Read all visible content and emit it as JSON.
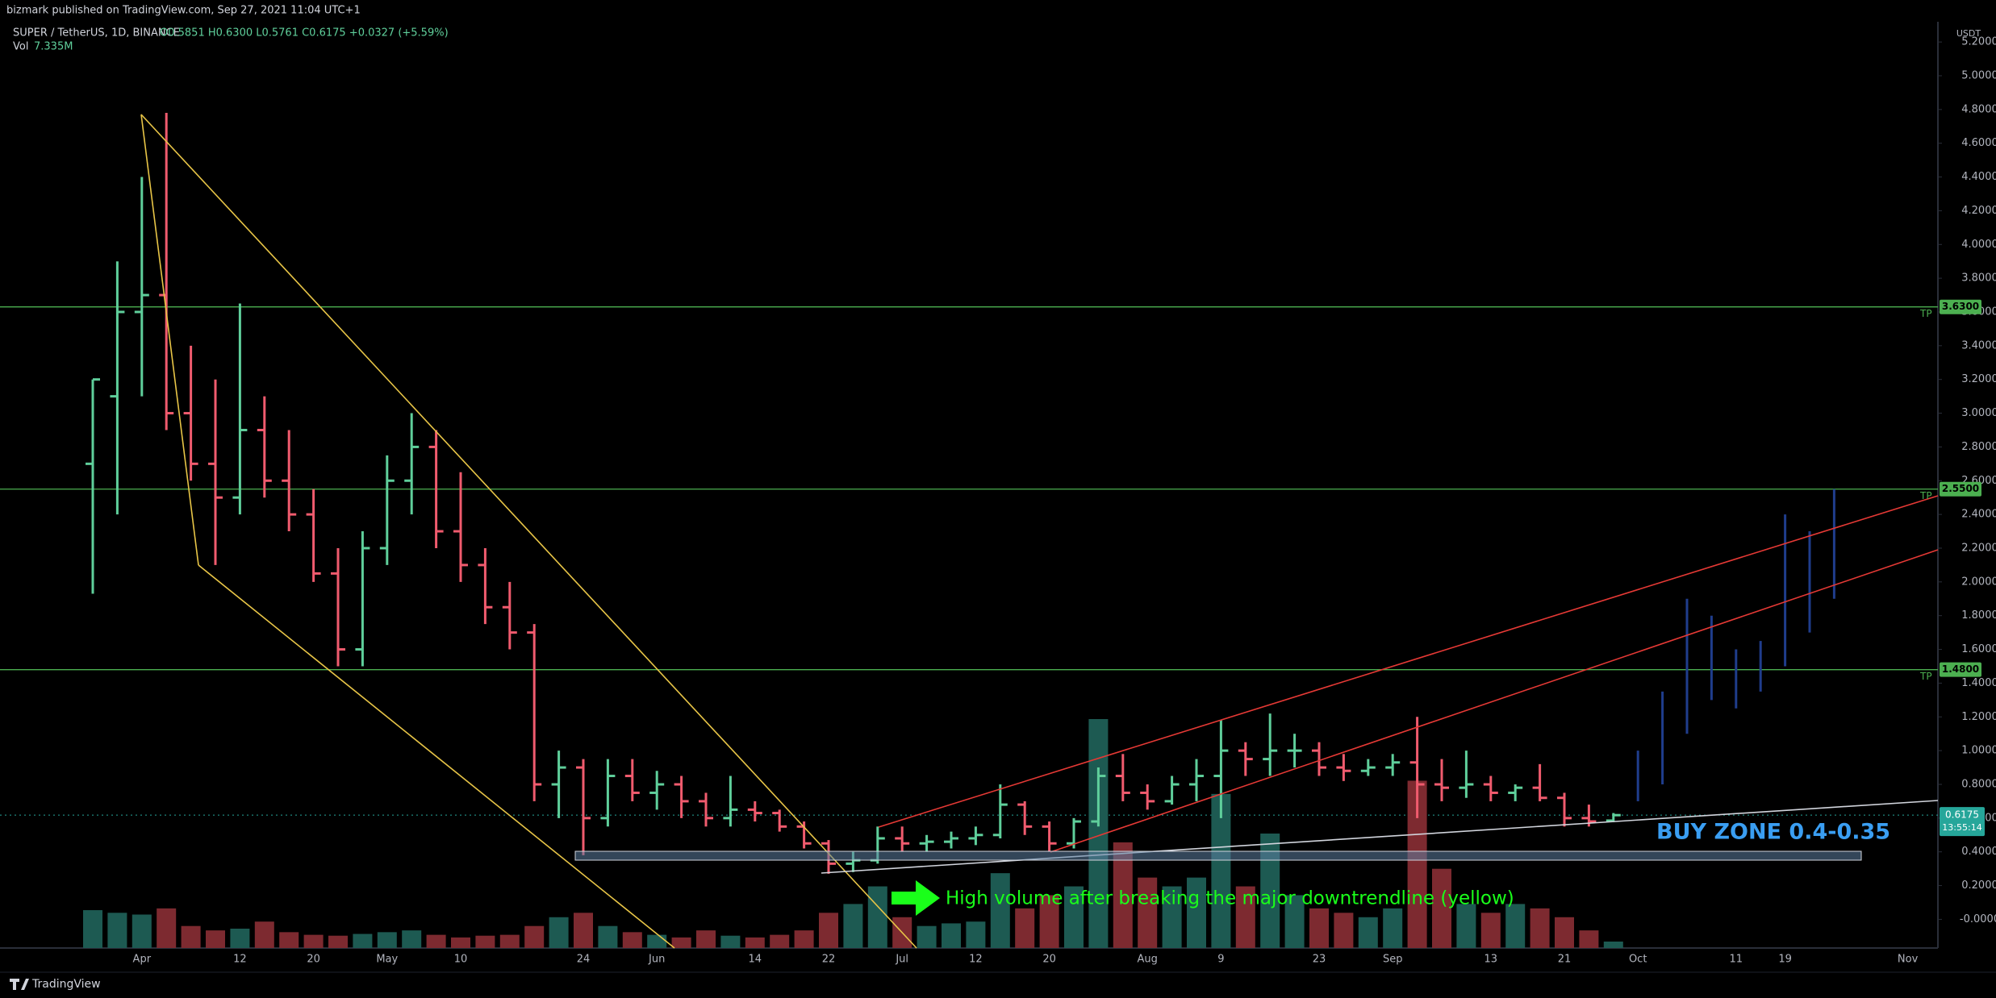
{
  "published": "bizmark published on TradingView.com, Sep 27, 2021 11:04 UTC+1",
  "footer": "TradingView",
  "chart_data": {
    "type": "ohlc",
    "title": "SUPER / TetherUS, 1D, BINANCE",
    "ohlc_legend": "O0.5851 H0.6300 L0.5761 C0.6175 +0.0327 (+5.59%)",
    "volume_label": "Vol",
    "volume_value": "7.335M",
    "currency": "USDT",
    "up_color": "#5fcf9b",
    "down_color": "#f05b6e",
    "volume_up_color": "#1d5a52",
    "volume_down_color": "#7d2a30",
    "categories": [
      null,
      null,
      "Apr",
      null,
      null,
      null,
      "12",
      null,
      null,
      "20",
      null,
      null,
      "May",
      null,
      null,
      "10",
      null,
      null,
      null,
      null,
      "24",
      null,
      null,
      "Jun",
      null,
      null,
      null,
      "14",
      null,
      null,
      "22",
      null,
      null,
      "Jul",
      null,
      null,
      "12",
      null,
      null,
      "20",
      null,
      null,
      null,
      "Aug",
      null,
      null,
      "9",
      null,
      null,
      null,
      "23",
      null,
      null,
      "Sep",
      null,
      null,
      null,
      "13",
      null,
      null,
      "21",
      null,
      null,
      "Oct",
      null,
      null,
      null,
      "11",
      null,
      "19",
      null,
      null,
      null,
      null,
      "Nov",
      null
    ],
    "open": [
      2.7,
      3.1,
      3.6,
      3.7,
      3.0,
      2.7,
      2.5,
      2.9,
      2.6,
      2.4,
      2.05,
      1.6,
      2.2,
      2.6,
      2.8,
      2.3,
      2.1,
      1.85,
      1.7,
      0.8,
      0.9,
      0.6,
      0.85,
      0.75,
      0.8,
      0.7,
      0.6,
      0.65,
      0.63,
      0.55,
      0.45,
      0.33,
      0.35,
      0.48,
      0.45,
      0.46,
      0.48,
      0.5,
      0.68,
      0.55,
      0.45,
      0.58,
      0.85,
      0.75,
      0.7,
      0.8,
      0.85,
      1.0,
      0.95,
      1.0,
      1.0,
      0.9,
      0.88,
      0.9,
      0.93,
      0.8,
      0.78,
      0.8,
      0.75,
      0.78,
      0.72,
      0.6,
      0.5851,
      null,
      null,
      null,
      null,
      null,
      null,
      null,
      null,
      null,
      null,
      null,
      null,
      null
    ],
    "high": [
      3.2,
      3.9,
      4.4,
      4.78,
      3.4,
      3.2,
      3.65,
      3.1,
      2.9,
      2.55,
      2.2,
      2.3,
      2.75,
      3.0,
      2.9,
      2.65,
      2.2,
      2.0,
      1.75,
      1.0,
      0.95,
      0.95,
      0.95,
      0.88,
      0.85,
      0.75,
      0.85,
      0.7,
      0.65,
      0.58,
      0.47,
      0.4,
      0.55,
      0.55,
      0.5,
      0.52,
      0.55,
      0.8,
      0.7,
      0.58,
      0.6,
      0.9,
      0.98,
      0.8,
      0.85,
      0.95,
      1.18,
      1.05,
      1.22,
      1.1,
      1.05,
      0.98,
      0.95,
      0.98,
      1.2,
      0.95,
      1.0,
      0.85,
      0.8,
      0.92,
      0.75,
      0.68,
      0.63,
      null,
      null,
      null,
      null,
      null,
      null,
      null,
      null,
      null,
      null,
      null,
      null,
      null
    ],
    "low": [
      1.93,
      2.4,
      3.1,
      2.9,
      2.6,
      2.1,
      2.4,
      2.5,
      2.3,
      2.0,
      1.5,
      1.5,
      2.1,
      2.4,
      2.2,
      2.0,
      1.75,
      1.6,
      0.7,
      0.6,
      0.38,
      0.55,
      0.7,
      0.65,
      0.6,
      0.55,
      0.55,
      0.58,
      0.52,
      0.42,
      0.27,
      0.28,
      0.33,
      0.4,
      0.4,
      0.42,
      0.44,
      0.48,
      0.5,
      0.4,
      0.42,
      0.55,
      0.7,
      0.65,
      0.68,
      0.7,
      0.6,
      0.85,
      0.85,
      0.9,
      0.85,
      0.82,
      0.85,
      0.85,
      0.6,
      0.7,
      0.72,
      0.7,
      0.7,
      0.7,
      0.55,
      0.55,
      0.5761,
      null,
      null,
      null,
      null,
      null,
      null,
      null,
      null,
      null,
      null,
      null,
      null,
      null
    ],
    "close": [
      3.2,
      3.6,
      3.7,
      3.0,
      2.7,
      2.5,
      2.9,
      2.6,
      2.4,
      2.05,
      1.6,
      2.2,
      2.6,
      2.8,
      2.3,
      2.1,
      1.85,
      1.7,
      0.8,
      0.9,
      0.6,
      0.85,
      0.75,
      0.8,
      0.7,
      0.6,
      0.65,
      0.63,
      0.55,
      0.45,
      0.33,
      0.35,
      0.48,
      0.45,
      0.46,
      0.48,
      0.5,
      0.68,
      0.55,
      0.45,
      0.58,
      0.85,
      0.75,
      0.7,
      0.8,
      0.85,
      1.0,
      0.95,
      1.0,
      1.0,
      0.9,
      0.88,
      0.9,
      0.93,
      0.8,
      0.78,
      0.8,
      0.75,
      0.78,
      0.72,
      0.6,
      0.58,
      0.6175,
      null,
      null,
      null,
      null,
      null,
      null,
      null,
      null,
      null,
      null,
      null,
      null,
      null
    ],
    "volume": [
      43000000,
      40000000,
      38000000,
      45000000,
      25000000,
      20000000,
      22000000,
      30000000,
      18000000,
      15000000,
      14000000,
      16000000,
      18000000,
      20000000,
      15000000,
      12000000,
      14000000,
      15000000,
      25000000,
      35000000,
      40000000,
      25000000,
      18000000,
      15000000,
      12000000,
      20000000,
      14000000,
      12000000,
      15000000,
      20000000,
      40000000,
      50000000,
      70000000,
      35000000,
      25000000,
      28000000,
      30000000,
      85000000,
      45000000,
      60000000,
      70000000,
      260000000,
      120000000,
      80000000,
      70000000,
      80000000,
      175000000,
      70000000,
      130000000,
      60000000,
      45000000,
      40000000,
      35000000,
      45000000,
      190000000,
      90000000,
      50000000,
      40000000,
      50000000,
      45000000,
      35000000,
      20000000,
      7335000,
      null,
      null,
      null,
      null,
      null,
      null,
      null,
      null,
      null,
      null,
      null,
      null,
      null
    ],
    "projection": {
      "color": "#1f3d8c",
      "high": [
        null,
        null,
        null,
        null,
        null,
        null,
        null,
        null,
        null,
        null,
        null,
        null,
        null,
        null,
        null,
        null,
        null,
        null,
        null,
        null,
        null,
        null,
        null,
        null,
        null,
        null,
        null,
        null,
        null,
        null,
        null,
        null,
        null,
        null,
        null,
        null,
        null,
        null,
        null,
        null,
        null,
        null,
        null,
        null,
        null,
        null,
        null,
        null,
        null,
        null,
        null,
        null,
        null,
        null,
        null,
        null,
        null,
        null,
        null,
        null,
        null,
        null,
        null,
        1.0,
        1.35,
        1.9,
        1.8,
        1.6,
        1.65,
        2.4,
        2.3,
        2.55,
        null,
        null,
        null,
        null
      ],
      "low": [
        null,
        null,
        null,
        null,
        null,
        null,
        null,
        null,
        null,
        null,
        null,
        null,
        null,
        null,
        null,
        null,
        null,
        null,
        null,
        null,
        null,
        null,
        null,
        null,
        null,
        null,
        null,
        null,
        null,
        null,
        null,
        null,
        null,
        null,
        null,
        null,
        null,
        null,
        null,
        null,
        null,
        null,
        null,
        null,
        null,
        null,
        null,
        null,
        null,
        null,
        null,
        null,
        null,
        null,
        null,
        null,
        null,
        null,
        null,
        null,
        null,
        null,
        null,
        0.7,
        0.8,
        1.1,
        1.3,
        1.25,
        1.35,
        1.5,
        1.7,
        1.9,
        null,
        null,
        null,
        null
      ]
    },
    "ylim": [
      -0.17,
      5.32
    ],
    "yticks": [
      {
        "value": 0,
        "label": "-0.0000"
      },
      {
        "value": 0.2,
        "label": "0.2000"
      },
      {
        "value": 0.4,
        "label": "0.4000"
      },
      {
        "value": 0.6,
        "label": "0.6000"
      },
      {
        "value": 0.8,
        "label": "0.8000"
      },
      {
        "value": 1.0,
        "label": "1.0000"
      },
      {
        "value": 1.2,
        "label": "1.2000"
      },
      {
        "value": 1.4,
        "label": "1.4000"
      },
      {
        "value": 1.6,
        "label": "1.6000"
      },
      {
        "value": 1.8,
        "label": "1.8000"
      },
      {
        "value": 2.0,
        "label": "2.0000"
      },
      {
        "value": 2.2,
        "label": "2.2000"
      },
      {
        "value": 2.4,
        "label": "2.4000"
      },
      {
        "value": 2.6,
        "label": "2.6000"
      },
      {
        "value": 2.8,
        "label": "2.8000"
      },
      {
        "value": 3.0,
        "label": "3.0000"
      },
      {
        "value": 3.2,
        "label": "3.2000"
      },
      {
        "value": 3.4,
        "label": "3.4000"
      },
      {
        "value": 3.6,
        "label": "3.6000"
      },
      {
        "value": 3.8,
        "label": "3.8000"
      },
      {
        "value": 4.0,
        "label": "4.0000"
      },
      {
        "value": 4.2,
        "label": "4.2000"
      },
      {
        "value": 4.4,
        "label": "4.4000"
      },
      {
        "value": 4.6,
        "label": "4.6000"
      },
      {
        "value": 4.8,
        "label": "4.8000"
      },
      {
        "value": 5.0,
        "label": "5.0000"
      },
      {
        "value": 5.2,
        "label": "5.2000"
      }
    ],
    "levels": {
      "color": "#4caf50",
      "items": [
        {
          "value": 3.63,
          "label": "3.6300",
          "note": "TP"
        },
        {
          "value": 2.55,
          "label": "2.5500",
          "note": "TP"
        },
        {
          "value": 1.48,
          "label": "1.4800",
          "note": "TP"
        }
      ]
    },
    "last_price": {
      "value": 0.6175,
      "label": "0.6175",
      "countdown": "13:55:14",
      "color": "#26a69a"
    },
    "annotations": {
      "buy_zone": "BUY ZONE 0.4-0.35",
      "volume_note": "High volume after breaking the major downtrendline (yellow)"
    }
  }
}
